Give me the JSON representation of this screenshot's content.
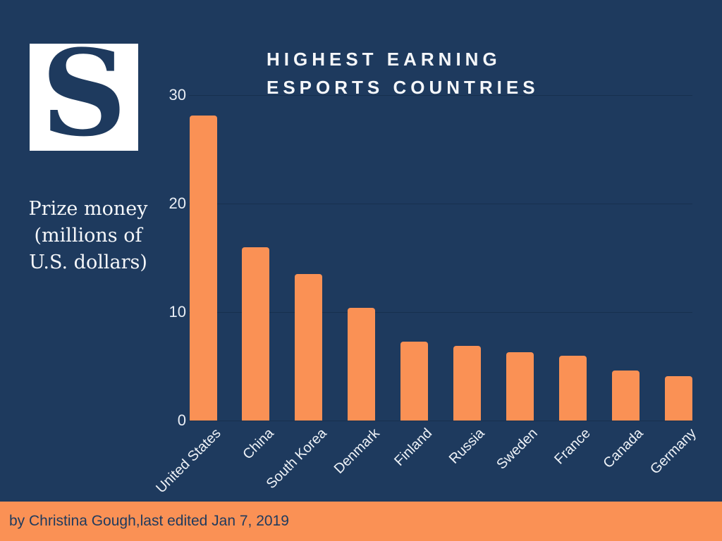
{
  "brand": {
    "logo_letter": "S"
  },
  "title": {
    "line1": "HIGHEST EARNING",
    "line2": "ESPORTS COUNTRIES"
  },
  "y_axis_label": {
    "line1": "Prize money",
    "line2": "(millions of",
    "line3": "U.S. dollars)"
  },
  "footer": {
    "text": "by Christina Gough,last edited Jan 7, 2019"
  },
  "colors": {
    "background": "#1e3a5e",
    "bar": "#fa9155",
    "gridline": "#17304e",
    "text_light": "#f5f7fa",
    "footer_bg": "#fa9155",
    "footer_text": "#1e3a5e",
    "logo_bg": "#ffffff",
    "logo_letter_color": "#1e3a5e"
  },
  "chart_data": {
    "type": "bar",
    "title": "HIGHEST EARNING ESPORTS COUNTRIES",
    "categories": [
      "United States",
      "China",
      "South Korea",
      "Denmark",
      "Finland",
      "Russia",
      "Sweden",
      "France",
      "Canada",
      "Germany"
    ],
    "values": [
      28.1,
      16.0,
      13.5,
      10.4,
      7.3,
      6.9,
      6.3,
      6.0,
      4.6,
      4.1
    ],
    "xlabel": "",
    "ylabel": "Prize money (millions of U.S. dollars)",
    "ylim": [
      0,
      30
    ],
    "yticks": [
      0,
      10,
      20,
      30
    ],
    "grid": true,
    "legend": false,
    "bar_color": "#fa9155",
    "source_note": "by Christina Gough,last edited Jan 7, 2019"
  }
}
